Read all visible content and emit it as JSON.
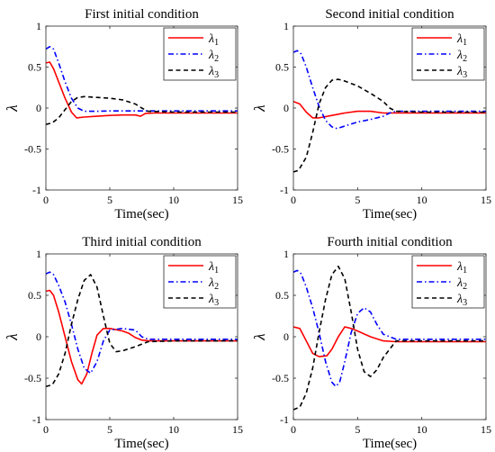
{
  "chart_data": [
    {
      "type": "line",
      "title": "First initial condition",
      "xlabel": "Time(sec)",
      "ylabel": "λ",
      "xlim": [
        0,
        15
      ],
      "ylim": [
        -1,
        1
      ],
      "xticks": [
        "0",
        "5",
        "10",
        "15"
      ],
      "yticks": [
        "-1",
        "-0.5",
        "0",
        "0.5",
        "1"
      ],
      "grid": false,
      "legend_position": "top-right",
      "series": [
        {
          "name": "λ1",
          "color": "#ff0000",
          "style": "solid",
          "x": [
            0,
            0.3,
            0.6,
            1,
            1.5,
            2,
            2.4,
            3,
            4,
            5,
            6,
            7,
            7.4,
            7.8,
            8.5,
            10,
            12,
            15
          ],
          "y": [
            0.55,
            0.56,
            0.48,
            0.32,
            0.12,
            -0.05,
            -0.12,
            -0.11,
            -0.1,
            -0.09,
            -0.085,
            -0.085,
            -0.1,
            -0.065,
            -0.06,
            -0.06,
            -0.06,
            -0.06
          ]
        },
        {
          "name": "λ2",
          "color": "#0000ff",
          "style": "dashdot",
          "x": [
            0,
            0.3,
            0.6,
            1,
            1.5,
            2,
            2.5,
            3,
            4,
            5,
            7,
            10,
            15
          ],
          "y": [
            0.72,
            0.75,
            0.72,
            0.55,
            0.32,
            0.12,
            0.0,
            -0.04,
            -0.04,
            -0.035,
            -0.035,
            -0.035,
            -0.035
          ]
        },
        {
          "name": "λ3",
          "color": "#000000",
          "style": "dashed",
          "x": [
            0,
            0.5,
            1,
            1.5,
            2,
            2.5,
            3,
            4,
            5,
            6,
            7,
            7.5,
            8,
            10,
            15
          ],
          "y": [
            -0.2,
            -0.18,
            -0.12,
            -0.02,
            0.08,
            0.13,
            0.14,
            0.13,
            0.12,
            0.1,
            0.05,
            0.0,
            -0.04,
            -0.05,
            -0.05
          ]
        }
      ]
    },
    {
      "type": "line",
      "title": "Second initial condition",
      "xlabel": "Time(sec)",
      "ylabel": "λ",
      "xlim": [
        0,
        15
      ],
      "ylim": [
        -1,
        1
      ],
      "xticks": [
        "0",
        "5",
        "10",
        "15"
      ],
      "yticks": [
        "-1",
        "-0.5",
        "0",
        "0.5",
        "1"
      ],
      "grid": false,
      "legend_position": "top-right",
      "series": [
        {
          "name": "λ1",
          "color": "#ff0000",
          "style": "solid",
          "x": [
            0,
            0.5,
            1,
            1.5,
            2,
            3,
            4,
            5,
            6,
            7,
            8,
            10,
            15
          ],
          "y": [
            0.08,
            0.05,
            -0.05,
            -0.12,
            -0.12,
            -0.09,
            -0.06,
            -0.04,
            -0.04,
            -0.06,
            -0.06,
            -0.06,
            -0.06
          ]
        },
        {
          "name": "λ2",
          "color": "#0000ff",
          "style": "dashdot",
          "x": [
            0,
            0.3,
            0.6,
            1,
            1.5,
            2,
            2.5,
            3,
            3.4,
            4,
            5,
            6,
            7,
            7.5,
            8,
            10,
            15
          ],
          "y": [
            0.68,
            0.7,
            0.66,
            0.5,
            0.25,
            0.02,
            -0.15,
            -0.23,
            -0.25,
            -0.22,
            -0.17,
            -0.14,
            -0.1,
            -0.06,
            -0.04,
            -0.04,
            -0.04
          ]
        },
        {
          "name": "λ3",
          "color": "#000000",
          "style": "dashed",
          "x": [
            0,
            0.4,
            1,
            1.5,
            2,
            2.5,
            3,
            3.5,
            4,
            5,
            6,
            7,
            7.5,
            8,
            10,
            15
          ],
          "y": [
            -0.78,
            -0.76,
            -0.6,
            -0.3,
            0.05,
            0.25,
            0.34,
            0.35,
            0.33,
            0.27,
            0.18,
            0.08,
            0.0,
            -0.04,
            -0.05,
            -0.05
          ]
        }
      ]
    },
    {
      "type": "line",
      "title": "Third initial condition",
      "xlabel": "Time(sec)",
      "ylabel": "λ",
      "xlim": [
        0,
        15
      ],
      "ylim": [
        -1,
        1
      ],
      "xticks": [
        "0",
        "5",
        "10",
        "15"
      ],
      "yticks": [
        "-1",
        "-0.5",
        "0",
        "0.5",
        "1"
      ],
      "grid": false,
      "legend_position": "top-right",
      "series": [
        {
          "name": "λ1",
          "color": "#ff0000",
          "style": "solid",
          "x": [
            0,
            0.3,
            0.6,
            1,
            1.5,
            2,
            2.5,
            2.8,
            3.2,
            3.6,
            4,
            4.5,
            5,
            6,
            6.5,
            7,
            7.5,
            8,
            10,
            15
          ],
          "y": [
            0.55,
            0.56,
            0.5,
            0.3,
            0.0,
            -0.3,
            -0.52,
            -0.57,
            -0.45,
            -0.2,
            0.02,
            0.1,
            0.1,
            0.07,
            0.04,
            -0.01,
            -0.04,
            -0.05,
            -0.05,
            -0.05
          ]
        },
        {
          "name": "λ2",
          "color": "#0000ff",
          "style": "dashdot",
          "x": [
            0,
            0.3,
            0.6,
            1,
            1.5,
            2,
            2.5,
            3,
            3.5,
            4,
            4.5,
            5,
            6,
            7,
            7.5,
            8,
            10,
            15
          ],
          "y": [
            0.76,
            0.78,
            0.75,
            0.62,
            0.42,
            0.15,
            -0.15,
            -0.38,
            -0.44,
            -0.3,
            -0.05,
            0.08,
            0.1,
            0.08,
            0.0,
            -0.03,
            -0.03,
            -0.03
          ]
        },
        {
          "name": "λ3",
          "color": "#000000",
          "style": "dashed",
          "x": [
            0,
            0.5,
            1,
            1.5,
            2,
            2.5,
            3,
            3.5,
            4,
            4.5,
            5,
            5.5,
            6,
            7,
            8,
            10,
            15
          ],
          "y": [
            -0.6,
            -0.58,
            -0.45,
            -0.2,
            0.15,
            0.45,
            0.68,
            0.75,
            0.6,
            0.25,
            -0.08,
            -0.18,
            -0.17,
            -0.12,
            -0.06,
            -0.05,
            -0.05
          ]
        }
      ]
    },
    {
      "type": "line",
      "title": "Fourth initial condition",
      "xlabel": "Time(sec)",
      "ylabel": "λ",
      "xlim": [
        0,
        15
      ],
      "ylim": [
        -1,
        1
      ],
      "xticks": [
        "0",
        "5",
        "10",
        "15"
      ],
      "yticks": [
        "-1",
        "-0.5",
        "0",
        "0.5",
        "1"
      ],
      "grid": false,
      "legend_position": "top-right",
      "series": [
        {
          "name": "λ1",
          "color": "#ff0000",
          "style": "solid",
          "x": [
            0,
            0.5,
            1,
            1.5,
            2,
            2.6,
            3,
            3.5,
            4,
            4.5,
            5,
            6,
            7,
            8,
            10,
            15
          ],
          "y": [
            0.12,
            0.1,
            -0.05,
            -0.2,
            -0.24,
            -0.23,
            -0.15,
            0.0,
            0.12,
            0.1,
            0.07,
            0.0,
            -0.05,
            -0.06,
            -0.06,
            -0.06
          ]
        },
        {
          "name": "λ2",
          "color": "#0000ff",
          "style": "dashdot",
          "x": [
            0,
            0.3,
            0.6,
            1,
            1.5,
            2,
            2.5,
            3,
            3.3,
            3.6,
            4,
            4.5,
            5,
            5.5,
            6,
            6.5,
            7,
            8,
            10,
            15
          ],
          "y": [
            0.78,
            0.8,
            0.76,
            0.6,
            0.35,
            0.05,
            -0.3,
            -0.55,
            -0.6,
            -0.55,
            -0.3,
            0.05,
            0.28,
            0.35,
            0.3,
            0.15,
            0.03,
            -0.03,
            -0.03,
            -0.03
          ]
        },
        {
          "name": "λ3",
          "color": "#000000",
          "style": "dashed",
          "x": [
            0,
            0.5,
            1,
            1.5,
            2,
            2.5,
            3,
            3.5,
            4,
            4.5,
            5,
            5.5,
            6,
            6.5,
            7,
            8,
            10,
            15
          ],
          "y": [
            -0.88,
            -0.85,
            -0.68,
            -0.38,
            0.05,
            0.45,
            0.75,
            0.85,
            0.7,
            0.3,
            -0.15,
            -0.42,
            -0.48,
            -0.4,
            -0.25,
            -0.05,
            -0.05,
            -0.05
          ]
        }
      ]
    }
  ]
}
